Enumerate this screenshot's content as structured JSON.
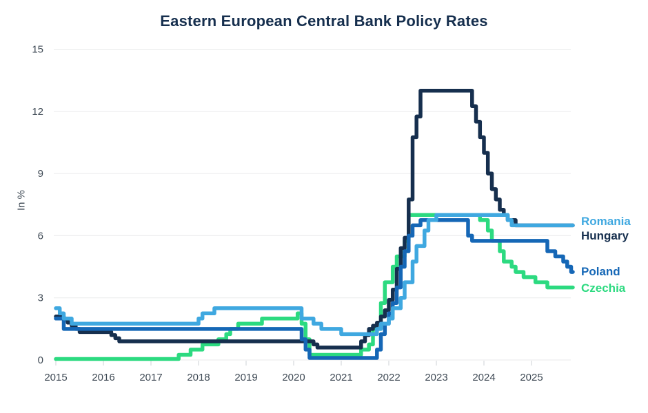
{
  "chart_data": {
    "type": "line",
    "subtype": "step",
    "title": "Eastern European Central Bank Policy Rates",
    "ylabel": "In %",
    "ylim": [
      0,
      15
    ],
    "y_ticks": [
      0,
      3,
      6,
      9,
      12,
      15
    ],
    "x_ticks": [
      2015,
      2016,
      2017,
      2018,
      2019,
      2020,
      2021,
      2022,
      2023,
      2024,
      2025
    ],
    "x_start": 2015.0,
    "x_end": 2025.87,
    "grid": "horizontal-only",
    "legend_position": "right-of-lines",
    "colors": {
      "title": "#162f4e",
      "axis_text": "#3f4a55",
      "gridline": "#e9eaeb",
      "tick_mark": "#ccd0d4",
      "background": "#ffffff"
    },
    "series": [
      {
        "name": "Czechia",
        "color": "#2cda80",
        "unit": "percent",
        "points": [
          [
            2015.0,
            0.05
          ],
          [
            2017.583,
            0.25
          ],
          [
            2017.833,
            0.5
          ],
          [
            2018.083,
            0.75
          ],
          [
            2018.417,
            1.0
          ],
          [
            2018.583,
            1.25
          ],
          [
            2018.667,
            1.5
          ],
          [
            2018.833,
            1.75
          ],
          [
            2019.333,
            2.0
          ],
          [
            2020.083,
            2.25
          ],
          [
            2020.167,
            1.75
          ],
          [
            2020.25,
            1.0
          ],
          [
            2020.333,
            0.25
          ],
          [
            2021.417,
            0.5
          ],
          [
            2021.583,
            0.75
          ],
          [
            2021.667,
            1.5
          ],
          [
            2021.833,
            2.75
          ],
          [
            2021.917,
            3.75
          ],
          [
            2022.083,
            4.5
          ],
          [
            2022.167,
            5.0
          ],
          [
            2022.333,
            5.75
          ],
          [
            2022.417,
            7.0
          ],
          [
            2023.917,
            6.75
          ],
          [
            2024.083,
            6.25
          ],
          [
            2024.167,
            5.75
          ],
          [
            2024.333,
            5.25
          ],
          [
            2024.417,
            4.75
          ],
          [
            2024.583,
            4.5
          ],
          [
            2024.667,
            4.25
          ],
          [
            2024.833,
            4.0
          ],
          [
            2025.083,
            3.75
          ],
          [
            2025.333,
            3.5
          ]
        ]
      },
      {
        "name": "Hungary",
        "color": "#162f4e",
        "unit": "percent",
        "points": [
          [
            2015.0,
            2.1
          ],
          [
            2015.167,
            1.95
          ],
          [
            2015.25,
            1.8
          ],
          [
            2015.333,
            1.65
          ],
          [
            2015.417,
            1.5
          ],
          [
            2015.5,
            1.35
          ],
          [
            2016.167,
            1.2
          ],
          [
            2016.25,
            1.05
          ],
          [
            2016.333,
            0.9
          ],
          [
            2020.417,
            0.75
          ],
          [
            2020.5,
            0.6
          ],
          [
            2021.417,
            0.9
          ],
          [
            2021.5,
            1.2
          ],
          [
            2021.583,
            1.5
          ],
          [
            2021.667,
            1.65
          ],
          [
            2021.75,
            1.8
          ],
          [
            2021.833,
            2.1
          ],
          [
            2021.917,
            2.4
          ],
          [
            2022.0,
            2.9
          ],
          [
            2022.083,
            3.4
          ],
          [
            2022.167,
            4.4
          ],
          [
            2022.25,
            5.4
          ],
          [
            2022.333,
            5.9
          ],
          [
            2022.417,
            7.75
          ],
          [
            2022.5,
            10.75
          ],
          [
            2022.583,
            11.75
          ],
          [
            2022.667,
            13.0
          ],
          [
            2023.75,
            12.25
          ],
          [
            2023.833,
            11.5
          ],
          [
            2023.917,
            10.75
          ],
          [
            2024.0,
            10.0
          ],
          [
            2024.083,
            9.0
          ],
          [
            2024.167,
            8.25
          ],
          [
            2024.25,
            7.75
          ],
          [
            2024.333,
            7.25
          ],
          [
            2024.417,
            7.0
          ],
          [
            2024.5,
            6.75
          ],
          [
            2024.667,
            6.5
          ]
        ]
      },
      {
        "name": "Poland",
        "color": "#1567b6",
        "unit": "percent",
        "points": [
          [
            2015.0,
            2.0
          ],
          [
            2015.167,
            1.5
          ],
          [
            2020.167,
            1.0
          ],
          [
            2020.25,
            0.5
          ],
          [
            2020.333,
            0.1
          ],
          [
            2021.75,
            0.5
          ],
          [
            2021.833,
            1.25
          ],
          [
            2021.917,
            1.75
          ],
          [
            2022.0,
            2.25
          ],
          [
            2022.083,
            2.75
          ],
          [
            2022.167,
            3.5
          ],
          [
            2022.25,
            4.5
          ],
          [
            2022.333,
            5.25
          ],
          [
            2022.417,
            6.0
          ],
          [
            2022.5,
            6.5
          ],
          [
            2022.667,
            6.75
          ],
          [
            2023.667,
            6.0
          ],
          [
            2023.75,
            5.75
          ],
          [
            2025.333,
            5.25
          ],
          [
            2025.5,
            5.0
          ],
          [
            2025.667,
            4.75
          ],
          [
            2025.75,
            4.5
          ],
          [
            2025.833,
            4.25
          ]
        ]
      },
      {
        "name": "Romania",
        "color": "#3fa8e0",
        "unit": "percent",
        "points": [
          [
            2015.0,
            2.5
          ],
          [
            2015.083,
            2.25
          ],
          [
            2015.167,
            2.0
          ],
          [
            2015.333,
            1.75
          ],
          [
            2018.0,
            2.0
          ],
          [
            2018.083,
            2.25
          ],
          [
            2018.333,
            2.5
          ],
          [
            2020.167,
            2.0
          ],
          [
            2020.417,
            1.75
          ],
          [
            2020.583,
            1.5
          ],
          [
            2021.0,
            1.25
          ],
          [
            2021.75,
            1.5
          ],
          [
            2021.833,
            1.75
          ],
          [
            2022.0,
            2.0
          ],
          [
            2022.083,
            2.5
          ],
          [
            2022.25,
            3.0
          ],
          [
            2022.333,
            3.75
          ],
          [
            2022.5,
            4.75
          ],
          [
            2022.583,
            5.5
          ],
          [
            2022.75,
            6.25
          ],
          [
            2022.833,
            6.75
          ],
          [
            2023.0,
            7.0
          ],
          [
            2024.5,
            6.75
          ],
          [
            2024.583,
            6.5
          ]
        ]
      }
    ]
  }
}
